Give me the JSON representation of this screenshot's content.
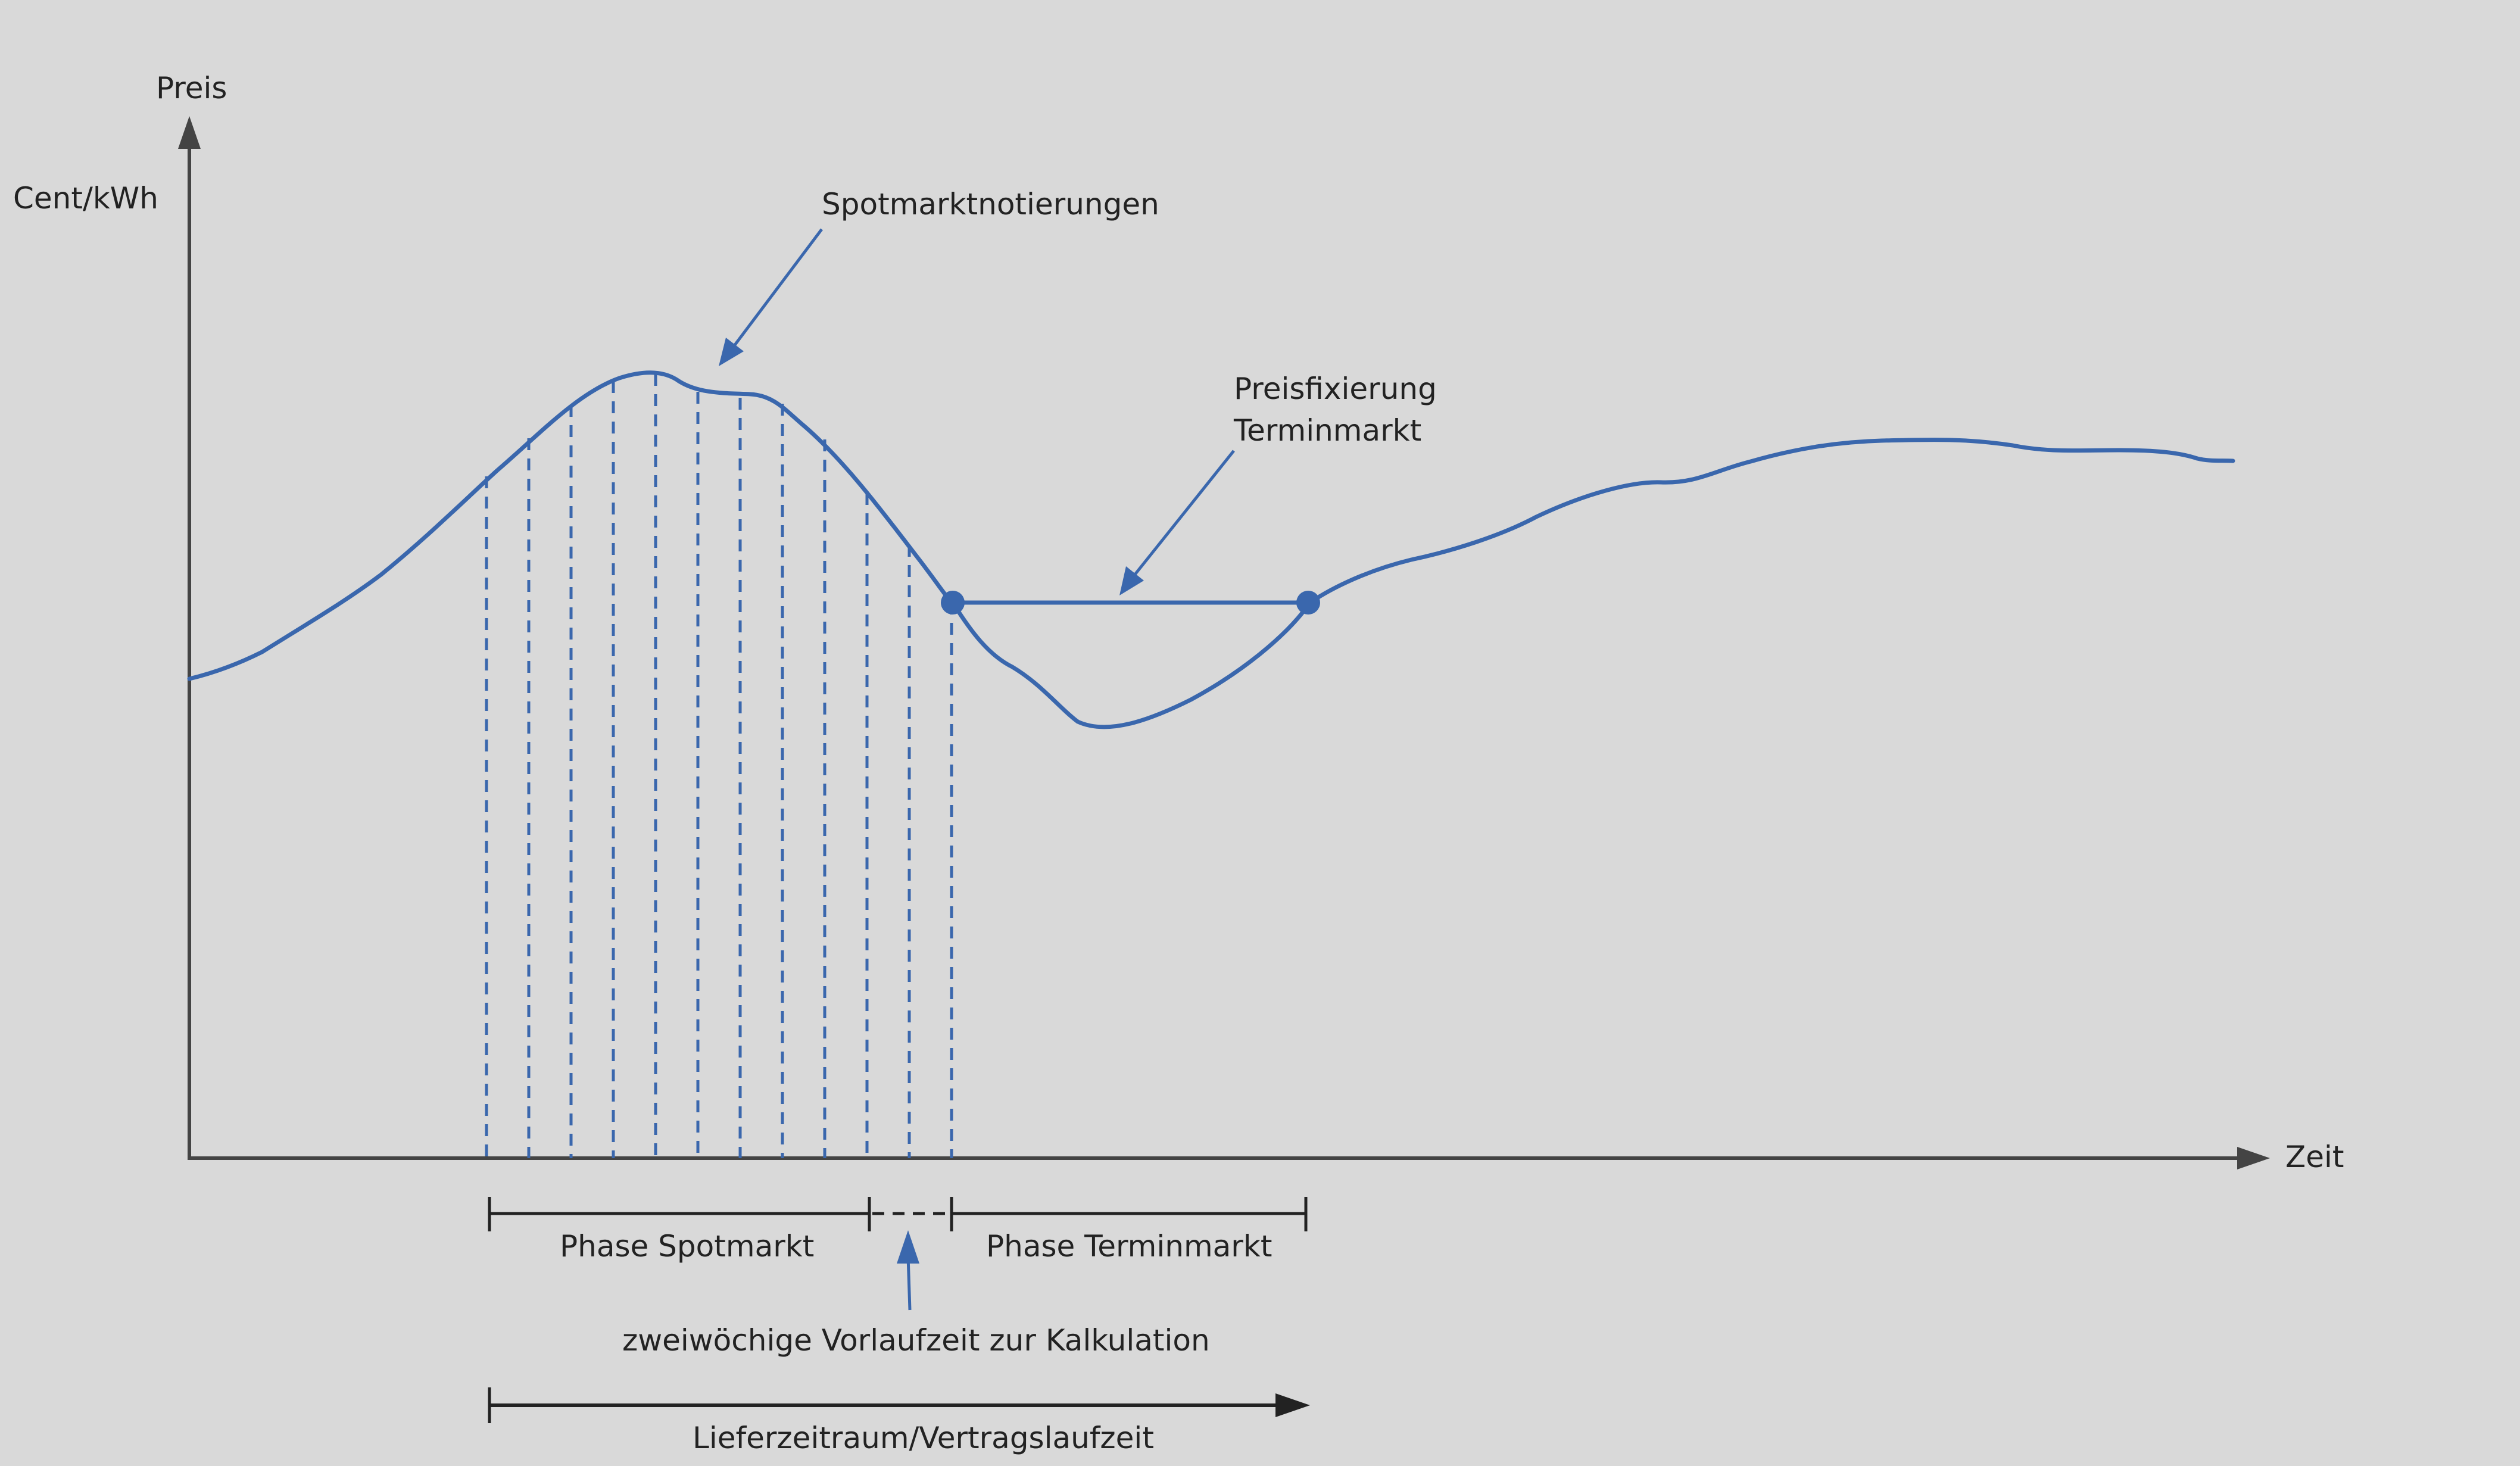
{
  "axes": {
    "y_label": "Preis",
    "y_unit": "Cent/kWh",
    "x_label": "Zeit"
  },
  "annotations": {
    "spot_quotes": "Spotmarktnotierungen",
    "fixing_line1": "Preisfixierung",
    "fixing_line2": "Terminmarkt",
    "lead_time": "zweiwöchige Vorlaufzeit zur Kalkulation",
    "delivery_period": "Lieferzeitraum/Vertragslaufzeit"
  },
  "phases": {
    "spot": "Phase Spotmarkt",
    "forward": "Phase Terminmarkt"
  },
  "colors": {
    "background": "#d9d9d9",
    "curve": "#3a67ad",
    "axis": "#444444",
    "text": "#222222"
  }
}
